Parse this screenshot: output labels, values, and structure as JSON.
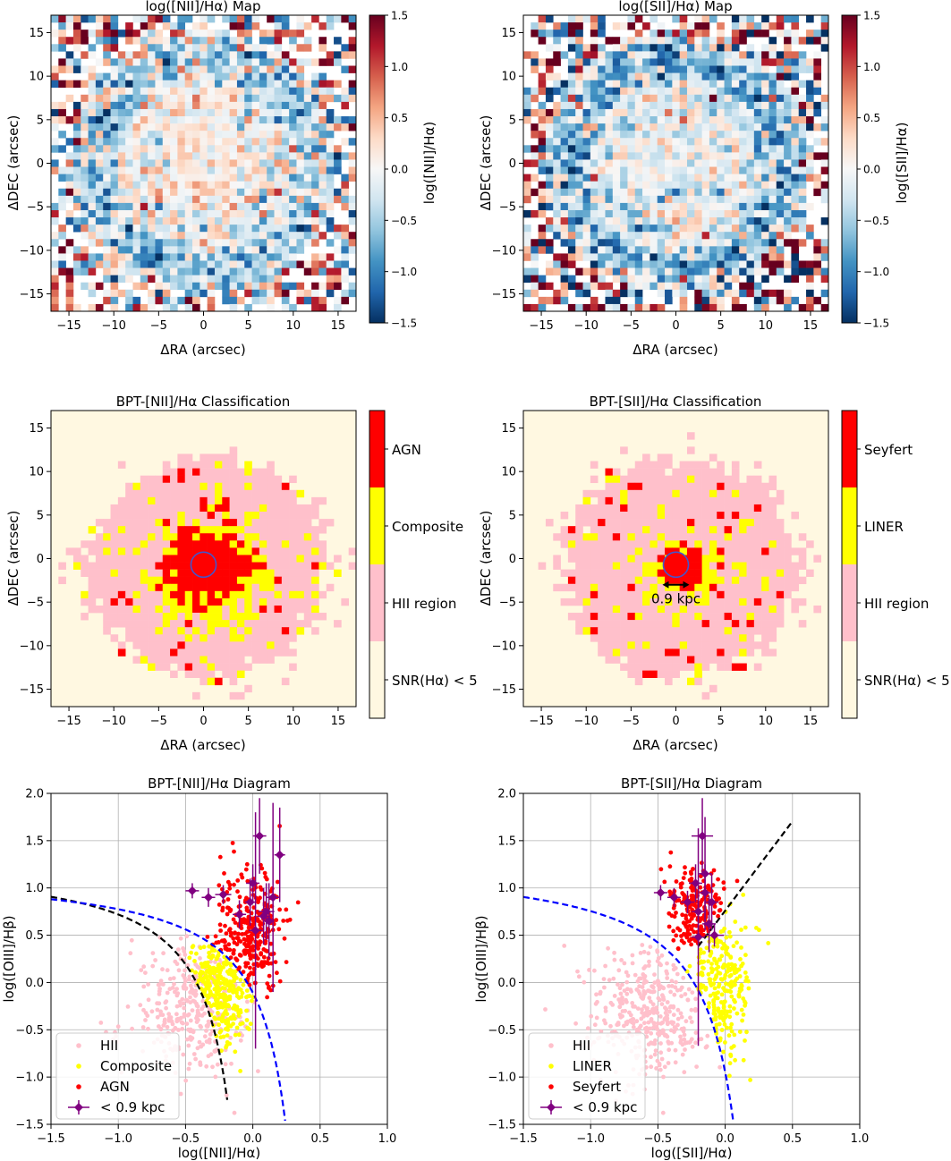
{
  "figure": {
    "background": "#ffffff"
  },
  "chart_data": [
    {
      "id": "nii-map",
      "type": "heatmap",
      "title": "log([NII]/Hα) Map",
      "xlabel": "ΔRA (arcsec)",
      "ylabel": "ΔDEC (arcsec)",
      "xlim": [
        -17,
        17
      ],
      "ylim": [
        -17,
        17
      ],
      "xticks": [
        -15,
        -10,
        -5,
        0,
        5,
        10,
        15
      ],
      "yticks": [
        -15,
        -10,
        -5,
        0,
        5,
        10,
        15
      ],
      "colorbar": {
        "label": "log([NII]/Hα)",
        "range": [
          -1.5,
          1.5
        ],
        "colormap": "RdBu_r",
        "ticks": [
          "1.5",
          "1.0",
          "0.5",
          "0.0",
          "−0.5",
          "−1.0",
          "−1.5"
        ],
        "tick_values": [
          1.5,
          1.0,
          0.5,
          0.0,
          -0.5,
          -1.0,
          -1.5
        ]
      },
      "pattern": {
        "center_value": 0.12,
        "ring_value": -0.55,
        "ring_radius": 12,
        "noise": 0.5,
        "edge_noise": 1.6,
        "seed": 3
      }
    },
    {
      "id": "sii-map",
      "type": "heatmap",
      "title": "log([SII]/Hα) Map",
      "xlabel": "ΔRA (arcsec)",
      "ylabel": "ΔDEC (arcsec)",
      "xlim": [
        -17,
        17
      ],
      "ylim": [
        -17,
        17
      ],
      "xticks": [
        -15,
        -10,
        -5,
        0,
        5,
        10,
        15
      ],
      "yticks": [
        -15,
        -10,
        -5,
        0,
        5,
        10,
        15
      ],
      "colorbar": {
        "label": "log([SII]/Hα)",
        "range": [
          -1.5,
          1.5
        ],
        "colormap": "RdBu_r",
        "ticks": [
          "1.5",
          "1.0",
          "0.5",
          "0.0",
          "−0.5",
          "−1.0",
          "−1.5"
        ],
        "tick_values": [
          1.5,
          1.0,
          0.5,
          0.0,
          -0.5,
          -1.0,
          -1.5
        ]
      },
      "pattern": {
        "center_value": -0.15,
        "ring_value": -0.7,
        "ring_radius": 12,
        "noise": 0.55,
        "edge_noise": 1.9,
        "seed": 11
      }
    },
    {
      "id": "nii-class",
      "type": "heatmap",
      "title": "BPT-[NII]/Hα Classification",
      "xlabel": "ΔRA (arcsec)",
      "ylabel": "ΔDEC (arcsec)",
      "xlim": [
        -17,
        17
      ],
      "ylim": [
        -17,
        17
      ],
      "xticks": [
        -15,
        -10,
        -5,
        0,
        5,
        10,
        15
      ],
      "yticks": [
        -15,
        -10,
        -5,
        0,
        5,
        10,
        15
      ],
      "categories": [
        {
          "label": "AGN",
          "color": "#ff0000"
        },
        {
          "label": "Composite",
          "color": "#ffff00"
        },
        {
          "label": "HII region",
          "color": "#ffc0cb"
        },
        {
          "label": "SNR(Hα) < 5",
          "color": "#fff8e1"
        }
      ],
      "aperture": {
        "x": 0,
        "y": -0.7,
        "radius": 1.4,
        "color": "#4455cc"
      },
      "pattern": {
        "agn_radius": 6.5,
        "comp_radius": 10,
        "extent": 13.5,
        "seed": 5
      }
    },
    {
      "id": "sii-class",
      "type": "heatmap",
      "title": "BPT-[SII]/Hα Classification",
      "xlabel": "ΔRA (arcsec)",
      "ylabel": "ΔDEC (arcsec)",
      "xlim": [
        -17,
        17
      ],
      "ylim": [
        -17,
        17
      ],
      "xticks": [
        -15,
        -10,
        -5,
        0,
        5,
        10,
        15
      ],
      "yticks": [
        -15,
        -10,
        -5,
        0,
        5,
        10,
        15
      ],
      "categories": [
        {
          "label": "Seyfert",
          "color": "#ff0000"
        },
        {
          "label": "LINER",
          "color": "#ffff00"
        },
        {
          "label": "HII region",
          "color": "#ffc0cb"
        },
        {
          "label": "SNR(Hα) < 5",
          "color": "#fff8e1"
        }
      ],
      "aperture": {
        "x": 0,
        "y": -0.7,
        "radius": 1.4,
        "color": "#4455cc"
      },
      "scale_bar": {
        "x1": -1.5,
        "x2": 1.5,
        "y": -3.0,
        "label": "0.9 kpc"
      },
      "pattern": {
        "agn_radius": 3.5,
        "comp_radius": 7,
        "extent": 13.5,
        "seed": 9
      }
    },
    {
      "id": "nii-bpt",
      "type": "scatter",
      "title": "BPT-[NII]/Hα Diagram",
      "xlabel": "log([NII]/Hα)",
      "ylabel": "log([OIII]/Hβ)",
      "xlim": [
        -1.5,
        1.0
      ],
      "ylim": [
        -1.5,
        2.0
      ],
      "xticks": [
        -1.5,
        -1.0,
        -0.5,
        0.0,
        0.5,
        1.0
      ],
      "yticks": [
        -1.5,
        -1.0,
        -0.5,
        0.0,
        0.5,
        1.0,
        1.5,
        2.0
      ],
      "xtick_labels": [
        "−1.5",
        "−1.0",
        "−0.5",
        "0.0",
        "0.5",
        "1.0"
      ],
      "ytick_labels": [
        "−1.5",
        "−1.0",
        "−0.5",
        "0.0",
        "0.5",
        "1.0",
        "1.5",
        "2.0"
      ],
      "legend": {
        "position": "lower-left",
        "entries": [
          "HII",
          "Composite",
          "AGN",
          "< 0.9 kpc"
        ]
      },
      "series_colors": {
        "HII": "#ffc0cb",
        "Composite": "#ffff00",
        "AGN": "#ff0000",
        "core": "#800080"
      },
      "curves": [
        {
          "name": "Kauffmann03",
          "color": "#000000",
          "a": 0.61,
          "b": 0.05,
          "c": 1.3,
          "xmax": -0.18
        },
        {
          "name": "Kewley01",
          "color": "#0000ff",
          "a": 0.61,
          "b": 0.47,
          "c": 1.19,
          "xmax": 0.25
        }
      ],
      "core_points": [
        {
          "x": 0.02,
          "y": 0.55,
          "xerr": 0.05,
          "yerr": 1.25
        },
        {
          "x": 0.05,
          "y": 1.55,
          "xerr": 0.05,
          "yerr": 0.4
        },
        {
          "x": 0.1,
          "y": 0.75,
          "xerr": 0.06,
          "yerr": 0.3
        },
        {
          "x": 0.15,
          "y": 0.9,
          "xerr": 0.05,
          "yerr": 1.0
        },
        {
          "x": 0.2,
          "y": 1.35,
          "xerr": 0.04,
          "yerr": 0.5
        },
        {
          "x": -0.45,
          "y": 0.97,
          "xerr": 0.05,
          "yerr": 0.08
        },
        {
          "x": -0.33,
          "y": 0.9,
          "xerr": 0.05,
          "yerr": 0.1
        },
        {
          "x": -0.22,
          "y": 0.93,
          "xerr": 0.06,
          "yerr": 0.1
        },
        {
          "x": -0.02,
          "y": 0.85,
          "xerr": 0.04,
          "yerr": 0.25
        },
        {
          "x": 0.08,
          "y": 0.7,
          "xerr": 0.05,
          "yerr": 0.3
        },
        {
          "x": 0.12,
          "y": 0.65,
          "xerr": 0.04,
          "yerr": 0.4
        },
        {
          "x": -0.1,
          "y": 0.72,
          "xerr": 0.05,
          "yerr": 0.15
        },
        {
          "x": 0.0,
          "y": 1.05,
          "xerr": 0.05,
          "yerr": 0.2
        }
      ],
      "pattern": {
        "n_hii": 330,
        "n_comp": 380,
        "n_agn": 330,
        "seed": 21
      }
    },
    {
      "id": "sii-bpt",
      "type": "scatter",
      "title": "BPT-[SII]/Hα Diagram",
      "xlabel": "log([SII]/Hα)",
      "ylabel": "log([OIII]/Hβ)",
      "xlim": [
        -1.5,
        1.0
      ],
      "ylim": [
        -1.5,
        2.0
      ],
      "xticks": [
        -1.5,
        -1.0,
        -0.5,
        0.0,
        0.5,
        1.0
      ],
      "yticks": [
        -1.5,
        -1.0,
        -0.5,
        0.0,
        0.5,
        1.0,
        1.5,
        2.0
      ],
      "xtick_labels": [
        "−1.5",
        "−1.0",
        "−0.5",
        "0.0",
        "0.5",
        "1.0"
      ],
      "ytick_labels": [
        "−1.5",
        "−1.0",
        "−0.5",
        "0.0",
        "0.5",
        "1.0",
        "1.5",
        "2.0"
      ],
      "legend": {
        "position": "lower-left",
        "entries": [
          "HII",
          "LINER",
          "Seyfert",
          "< 0.9 kpc"
        ]
      },
      "series_colors": {
        "HII": "#ffc0cb",
        "LINER": "#ffff00",
        "Seyfert": "#ff0000",
        "core": "#800080"
      },
      "curves": [
        {
          "name": "Kewley01",
          "color": "#0000ff",
          "a": 0.72,
          "b": 0.32,
          "c": 1.3,
          "xmax": 0.07
        },
        {
          "name": "LINER-Seyfert",
          "color": "#000000",
          "line": {
            "slope": 1.89,
            "intercept": 0.76
          },
          "xmin": -0.2,
          "xmax": 0.5
        }
      ],
      "core_points": [
        {
          "x": -0.17,
          "y": 1.55,
          "xerr": 0.08,
          "yerr": 0.4
        },
        {
          "x": -0.15,
          "y": 1.15,
          "xerr": 0.05,
          "yerr": 0.6
        },
        {
          "x": -0.1,
          "y": 0.85,
          "xerr": 0.05,
          "yerr": 0.3
        },
        {
          "x": -0.48,
          "y": 0.95,
          "xerr": 0.05,
          "yerr": 0.08
        },
        {
          "x": -0.38,
          "y": 0.9,
          "xerr": 0.05,
          "yerr": 0.1
        },
        {
          "x": -0.28,
          "y": 0.85,
          "xerr": 0.05,
          "yerr": 0.12
        },
        {
          "x": -0.2,
          "y": 0.75,
          "xerr": 0.05,
          "yerr": 0.2
        },
        {
          "x": -0.12,
          "y": 0.62,
          "xerr": 0.05,
          "yerr": 0.3
        },
        {
          "x": -0.08,
          "y": 0.5,
          "xerr": 0.07,
          "yerr": 0.12
        },
        {
          "x": -0.2,
          "y": 0.48,
          "xerr": 0.05,
          "yerr": 1.15
        },
        {
          "x": -0.15,
          "y": 0.95,
          "xerr": 0.04,
          "yerr": 0.3
        },
        {
          "x": -0.22,
          "y": 1.05,
          "xerr": 0.05,
          "yerr": 0.2
        }
      ],
      "pattern": {
        "n_hii": 420,
        "n_comp": 330,
        "n_agn": 230,
        "seed": 33
      }
    }
  ]
}
